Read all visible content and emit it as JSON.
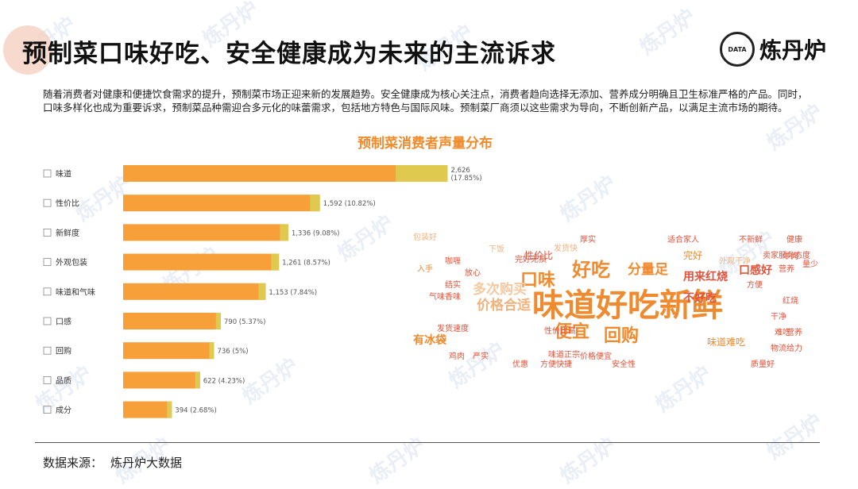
{
  "header": {
    "title": "预制菜口味好吃、安全健康成为未来的主流诉求",
    "logo_text": "炼丹炉",
    "logo_mark": "DATA"
  },
  "intro": "随着消费者对健康和便捷饮食需求的提升，预制菜市场正迎来新的发展趋势。安全健康成为核心关注点，消费者趋向选择无添加、营养成分明确且卫生标准严格的产品。同时，口味多样化也成为重要诉求，预制菜品种需迎合多元化的味蕾需求，包括地方特色与国际风味。预制菜厂商须以这些需求为导向，不断创新产品，以满足主流市场的期待。",
  "chart_data": {
    "type": "bar",
    "title": "预制菜消费者声量分布",
    "orientation": "horizontal",
    "categories": [
      "味道",
      "性价比",
      "新鲜度",
      "外观包装",
      "味道和气味",
      "口感",
      "回购",
      "品质",
      "成分"
    ],
    "values": [
      2626,
      1592,
      1336,
      1261,
      1153,
      790,
      736,
      622,
      394
    ],
    "data_labels": [
      "2,626 (17.85%)",
      "1,592 (10.82%)",
      "1,336 (9.08%)",
      "1,261 (8.57%)",
      "1,153 (7.84%)",
      "790 (5.37%)",
      "736 (5%)",
      "622 (4.23%)",
      "394 (2.68%)"
    ],
    "xlim": [
      0,
      2700
    ],
    "colors": {
      "bar": "#f7a03a",
      "highlight": "#e0c94f"
    }
  },
  "word_cloud": [
    {
      "text": "味道好吃新鲜",
      "weight": 10,
      "color": "#ef8a2e"
    },
    {
      "text": "好吃",
      "weight": 6,
      "color": "#ef8a2e"
    },
    {
      "text": "回购",
      "weight": 5,
      "color": "#ef8a2e"
    },
    {
      "text": "便宜",
      "weight": 5,
      "color": "#ef8a2e"
    },
    {
      "text": "口味",
      "weight": 5,
      "color": "#ef8a2e"
    },
    {
      "text": "价格合适",
      "weight": 4,
      "color": "#f1b27c"
    },
    {
      "text": "多次购买",
      "weight": 4,
      "color": "#f5c8a0"
    },
    {
      "text": "分量足",
      "weight": 4,
      "color": "#ef8a2e"
    },
    {
      "text": "用来红烧",
      "weight": 3,
      "color": "#e0523a"
    },
    {
      "text": "不好吃",
      "weight": 3,
      "color": "#e0523a"
    },
    {
      "text": "口感好",
      "weight": 3,
      "color": "#e0523a"
    },
    {
      "text": "有冰袋",
      "weight": 3,
      "color": "#ef8a2e"
    },
    {
      "text": "味道难吃",
      "weight": 2,
      "color": "#ef8a2e"
    },
    {
      "text": "性价比",
      "weight": 2,
      "color": "#e0523a"
    },
    {
      "text": "完好",
      "weight": 2,
      "color": "#ef8a2e"
    },
    {
      "text": "卖家服务态度",
      "weight": 1,
      "color": "#e0523a"
    },
    {
      "text": "发货速度",
      "weight": 1,
      "color": "#e0523a"
    },
    {
      "text": "性价比高",
      "weight": 1,
      "color": "#e0523a"
    },
    {
      "text": "适合家人",
      "weight": 1,
      "color": "#e0523a"
    },
    {
      "text": "不新鲜",
      "weight": 1,
      "color": "#e0523a"
    },
    {
      "text": "健康",
      "weight": 1,
      "color": "#e0523a"
    },
    {
      "text": "物流给力",
      "weight": 1,
      "color": "#e0523a"
    },
    {
      "text": "营养",
      "weight": 1,
      "color": "#e0523a"
    },
    {
      "text": "安全性",
      "weight": 1,
      "color": "#e0523a"
    },
    {
      "text": "方便快捷",
      "weight": 1,
      "color": "#e0523a"
    },
    {
      "text": "价格便宜",
      "weight": 1,
      "color": "#e0523a"
    },
    {
      "text": "严实",
      "weight": 1,
      "color": "#e0523a"
    },
    {
      "text": "鸡肉",
      "weight": 1,
      "color": "#e0523a"
    },
    {
      "text": "入手",
      "weight": 1,
      "color": "#ef8a2e"
    },
    {
      "text": "咖喱",
      "weight": 1,
      "color": "#e0523a"
    },
    {
      "text": "气味香味",
      "weight": 1,
      "color": "#e0523a"
    },
    {
      "text": "结实",
      "weight": 1,
      "color": "#e0523a"
    },
    {
      "text": "方便",
      "weight": 1,
      "color": "#e0523a"
    },
    {
      "text": "放心",
      "weight": 1,
      "color": "#e0523a"
    },
    {
      "text": "干净",
      "weight": 1,
      "color": "#e0523a"
    },
    {
      "text": "外观干净",
      "weight": 1,
      "color": "#f1b27c"
    },
    {
      "text": "牛肉",
      "weight": 1,
      "color": "#e0523a"
    },
    {
      "text": "难吃",
      "weight": 1,
      "color": "#e0523a"
    },
    {
      "text": "质量好",
      "weight": 1,
      "color": "#e0523a"
    },
    {
      "text": "优惠",
      "weight": 1,
      "color": "#e0523a"
    },
    {
      "text": "味道正宗",
      "weight": 1,
      "color": "#e0523a"
    },
    {
      "text": "营养",
      "weight": 1,
      "color": "#e0523a"
    },
    {
      "text": "完好无损",
      "weight": 1,
      "color": "#e0523a"
    },
    {
      "text": "发货快",
      "weight": 1,
      "color": "#f1b27c"
    },
    {
      "text": "厚实",
      "weight": 1,
      "color": "#e0523a"
    },
    {
      "text": "下饭",
      "weight": 1,
      "color": "#f1b27c"
    },
    {
      "text": "量少",
      "weight": 1,
      "color": "#e0523a"
    },
    {
      "text": "红烧",
      "weight": 1,
      "color": "#e0523a"
    },
    {
      "text": "包装好",
      "weight": 1,
      "color": "#f1b27c"
    }
  ],
  "source": {
    "label": "数据来源：",
    "value": "炼丹炉大数据"
  },
  "watermark": "炼丹炉"
}
